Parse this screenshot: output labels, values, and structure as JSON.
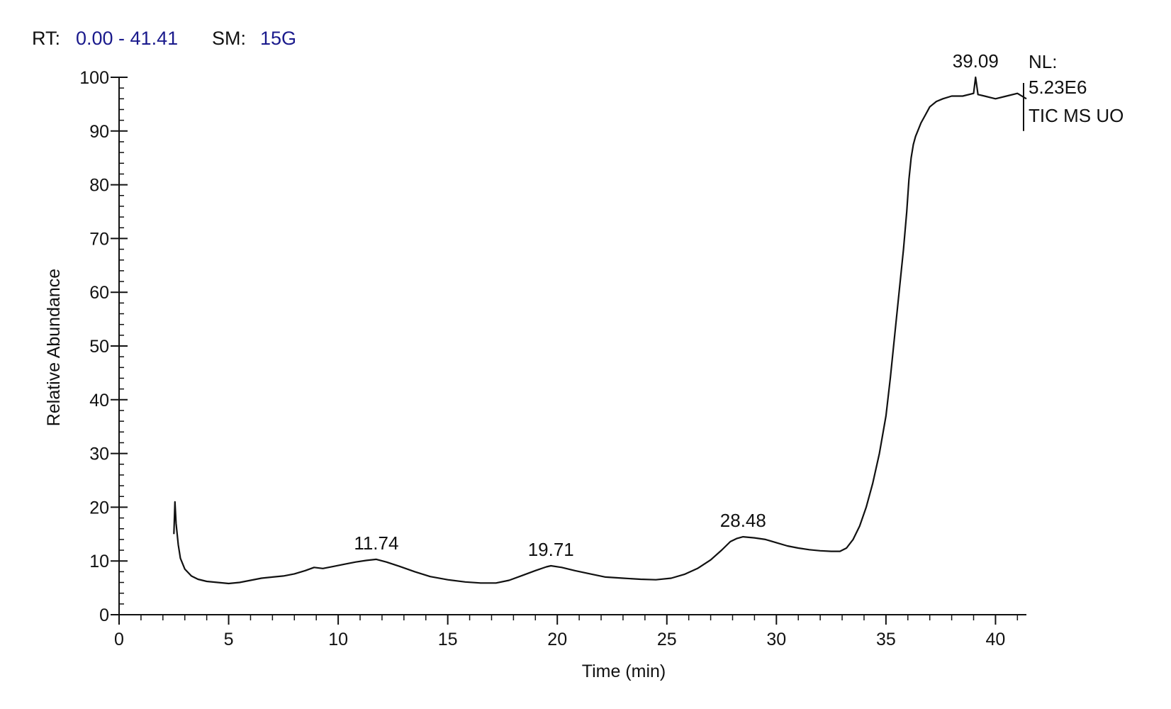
{
  "header": {
    "rt_label": "RT:",
    "rt_range": "0.00 - 41.41",
    "sm_label": "SM:",
    "sm_value": "15G"
  },
  "notes": {
    "nl_label": "NL:",
    "nl_value": "5.23E6",
    "trace": "TIC  MS UO"
  },
  "colors": {
    "trace": "#111111",
    "header_value": "#1a1a8c"
  },
  "chart_data": {
    "type": "line",
    "title": "",
    "xlabel": "Time (min)",
    "ylabel": "Relative Abundance",
    "xlim": [
      0,
      41.41
    ],
    "ylim": [
      0,
      100
    ],
    "x_ticks": [
      0,
      5,
      10,
      15,
      20,
      25,
      30,
      35,
      40
    ],
    "y_ticks": [
      0,
      10,
      20,
      30,
      40,
      50,
      60,
      70,
      80,
      90,
      100
    ],
    "grid": false,
    "legend": "none",
    "series": [
      {
        "x": [
          2.5,
          2.55,
          2.6,
          2.7,
          2.8,
          3.0,
          3.3,
          3.6,
          4.0,
          4.5,
          5.0,
          5.5,
          6.0,
          6.5,
          7.0,
          7.5,
          8.0,
          8.5,
          8.9,
          9.3,
          9.8,
          10.3,
          10.8,
          11.3,
          11.74,
          12.2,
          12.8,
          13.5,
          14.2,
          15.0,
          15.8,
          16.5,
          17.2,
          17.8,
          18.4,
          19.0,
          19.5,
          19.71,
          20.2,
          20.8,
          21.5,
          22.2,
          23.0,
          23.8,
          24.5,
          25.2,
          25.8,
          26.4,
          27.0,
          27.5,
          27.9,
          28.2,
          28.48,
          29.0,
          29.5,
          30.0,
          30.5,
          31.0,
          31.5,
          32.0,
          32.5,
          32.9,
          33.2,
          33.5,
          33.8,
          34.1,
          34.4,
          34.7,
          35.0,
          35.2,
          35.4,
          35.6,
          35.8,
          35.95,
          36.05,
          36.15,
          36.25,
          36.35,
          36.45,
          36.6,
          36.8,
          37.0,
          37.3,
          37.6,
          38.0,
          38.5,
          39.0,
          39.09,
          39.2,
          39.5,
          40.0,
          40.5,
          41.0,
          41.41
        ],
        "y": [
          15,
          21,
          17,
          13,
          10.5,
          8.5,
          7.2,
          6.6,
          6.2,
          6.0,
          5.8,
          6.0,
          6.4,
          6.8,
          7.0,
          7.2,
          7.6,
          8.2,
          8.8,
          8.6,
          9.0,
          9.4,
          9.8,
          10.1,
          10.3,
          9.8,
          9.0,
          8.0,
          7.1,
          6.5,
          6.1,
          5.9,
          5.9,
          6.4,
          7.3,
          8.2,
          8.9,
          9.1,
          8.8,
          8.2,
          7.6,
          7.0,
          6.8,
          6.6,
          6.5,
          6.8,
          7.5,
          8.6,
          10.2,
          12.0,
          13.6,
          14.2,
          14.5,
          14.3,
          14.0,
          13.4,
          12.8,
          12.4,
          12.1,
          11.9,
          11.8,
          11.8,
          12.4,
          14.0,
          16.5,
          20.0,
          24.5,
          30.0,
          37.0,
          44.0,
          52.0,
          60.0,
          68.0,
          75.0,
          81.0,
          85.0,
          87.5,
          89.0,
          90.0,
          91.5,
          93.0,
          94.5,
          95.5,
          96.0,
          96.5,
          96.5,
          97.0,
          100.0,
          96.8,
          96.5,
          96.0,
          96.5,
          97.0,
          96.0
        ]
      }
    ],
    "peak_labels": [
      {
        "x": 11.74,
        "y": 10.3,
        "text": "11.74"
      },
      {
        "x": 19.71,
        "y": 9.1,
        "text": "19.71"
      },
      {
        "x": 28.48,
        "y": 14.5,
        "text": "28.48"
      },
      {
        "x": 39.09,
        "y": 100.0,
        "text": "39.09"
      }
    ]
  }
}
